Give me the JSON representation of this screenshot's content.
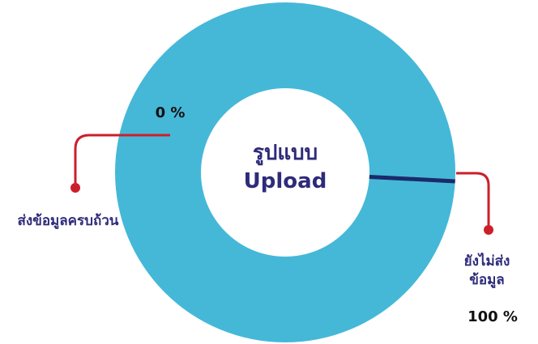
{
  "chart_data": {
    "type": "donut",
    "title": "รูปแบบ Upload",
    "categories": [
      "ส่งข้อมูลครบถ้วน",
      "ยังไม่ส่งข้อมูล"
    ],
    "values": [
      0,
      100
    ],
    "value_labels": [
      "0 %",
      "100 %"
    ],
    "colors": [
      "#1b2a6b",
      "#45b8d8"
    ]
  }
}
